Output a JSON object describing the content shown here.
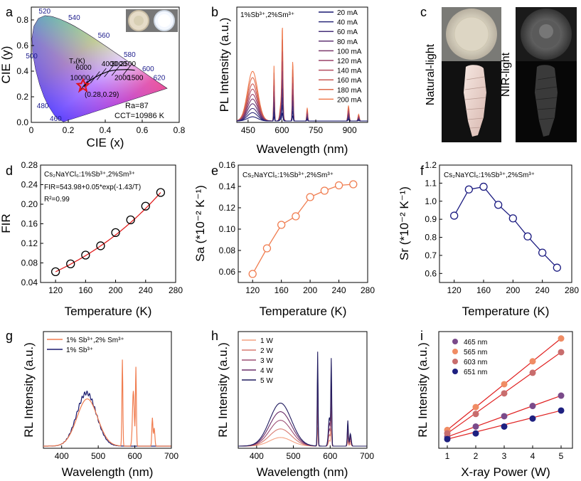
{
  "chart_data": [
    {
      "panel": "a",
      "type": "scatter",
      "xlabel": "CIE (x)",
      "ylabel": "CIE (y)",
      "xlim": [
        0.0,
        0.8
      ],
      "ylim": [
        0.0,
        0.9
      ],
      "xticks": [
        0.0,
        0.2,
        0.4,
        0.6,
        0.8
      ],
      "yticks": [
        0.0,
        0.2,
        0.4,
        0.6,
        0.8
      ],
      "wavelength_labels": [
        "520",
        "540",
        "560",
        "580",
        "600",
        "620",
        "500",
        "480",
        "460"
      ],
      "planck_label": "Tₓ(K)",
      "cct_labels": [
        "10000",
        "6000",
        "4000",
        "3000",
        "2500",
        "2000",
        "1500"
      ],
      "point": {
        "x": 0.28,
        "y": 0.29,
        "label": "(0.28,0.29)"
      },
      "ra_text": "Ra=87",
      "cct_text": "CCT=10986 K"
    },
    {
      "panel": "b",
      "type": "line",
      "title": "1%Sb³⁺,2%Sm³⁺",
      "xlabel": "Wavelength (nm)",
      "ylabel": "PL Intensity (a.u.)",
      "xlim": [
        400,
        980
      ],
      "xticks": [
        450,
        600,
        750,
        900
      ],
      "series": [
        {
          "name": "20 mA",
          "scale": 0.08,
          "color": "#191970"
        },
        {
          "name": "40 mA",
          "scale": 0.16,
          "color": "#2c2a7a"
        },
        {
          "name": "60 mA",
          "scale": 0.24,
          "color": "#473079"
        },
        {
          "name": "80 mA",
          "scale": 0.33,
          "color": "#613574"
        },
        {
          "name": "100 mA",
          "scale": 0.42,
          "color": "#7d3a6e"
        },
        {
          "name": "120 mA",
          "scale": 0.51,
          "color": "#9a4268"
        },
        {
          "name": "140 mA",
          "scale": 0.61,
          "color": "#b44d60"
        },
        {
          "name": "160 mA",
          "scale": 0.71,
          "color": "#cb5a55"
        },
        {
          "name": "180 mA",
          "scale": 0.83,
          "color": "#de6a4b"
        },
        {
          "name": "200 mA",
          "scale": 0.95,
          "color": "#f07d50"
        }
      ]
    },
    {
      "panel": "d",
      "type": "scatter",
      "xlabel": "Temperature (K)",
      "ylabel": "FIR",
      "xlim": [
        100,
        280
      ],
      "ylim": [
        0.04,
        0.28
      ],
      "xticks": [
        120,
        160,
        200,
        240,
        280
      ],
      "yticks": [
        0.04,
        0.08,
        0.12,
        0.16,
        0.2,
        0.24,
        0.28
      ],
      "x": [
        120,
        140,
        160,
        180,
        200,
        220,
        240,
        260
      ],
      "y": [
        0.062,
        0.078,
        0.096,
        0.115,
        0.142,
        0.168,
        0.196,
        0.224
      ],
      "annotations": [
        "Cs₂NaYCl₆:1%Sb³⁺,2%Sm³⁺",
        "FIR=543.98+0.05*exp(-1.43/T)",
        "R²=0.99"
      ]
    },
    {
      "panel": "e",
      "type": "line",
      "xlabel": "Temperature (K)",
      "ylabel": "Sa (*10⁻² K⁻¹)",
      "xlim": [
        100,
        280
      ],
      "ylim": [
        0.05,
        0.16
      ],
      "xticks": [
        120,
        160,
        200,
        240,
        280
      ],
      "yticks": [
        0.06,
        0.08,
        0.1,
        0.12,
        0.14,
        0.16
      ],
      "x": [
        120,
        140,
        160,
        180,
        200,
        220,
        240,
        260
      ],
      "y": [
        0.058,
        0.082,
        0.104,
        0.112,
        0.13,
        0.136,
        0.141,
        0.142
      ],
      "annotation": "Cs₂NaYCl₆:1%Sb³⁺,2%Sm³⁺"
    },
    {
      "panel": "f",
      "type": "line",
      "xlabel": "Temperature (K)",
      "ylabel": "Sr (*10⁻² K⁻¹)",
      "xlim": [
        100,
        280
      ],
      "ylim": [
        0.55,
        1.2
      ],
      "xticks": [
        120,
        160,
        200,
        240,
        280
      ],
      "yticks": [
        0.6,
        0.7,
        0.8,
        0.9,
        1.0,
        1.1,
        1.2
      ],
      "x": [
        120,
        140,
        160,
        180,
        200,
        220,
        240,
        260
      ],
      "y": [
        0.92,
        1.065,
        1.08,
        0.98,
        0.905,
        0.805,
        0.715,
        0.632
      ],
      "annotation": "Cs₂NaYCl₆:1%Sb³⁺,2%Sm³⁺"
    },
    {
      "panel": "g",
      "type": "line",
      "xlabel": "Wavelength (nm)",
      "ylabel": "RL Intensity (a.u.)",
      "xlim": [
        350,
        700
      ],
      "xticks": [
        400,
        500,
        600,
        700
      ],
      "series": [
        {
          "name": "1% Sb³⁺,2% Sm³⁺",
          "color": "#f07d50"
        },
        {
          "name": "1% Sb³⁺",
          "color": "#1a1a6e"
        }
      ]
    },
    {
      "panel": "h",
      "type": "line",
      "xlabel": "Wavelength (nm)",
      "ylabel": "RL Intensity (a.u.)",
      "xlim": [
        350,
        700
      ],
      "xticks": [
        400,
        500,
        600,
        700
      ],
      "series": [
        {
          "name": "1 W",
          "scale": 0.2,
          "color": "#f4a080"
        },
        {
          "name": "2 W",
          "scale": 0.4,
          "color": "#d77a70"
        },
        {
          "name": "3 W",
          "scale": 0.6,
          "color": "#9c4e74"
        },
        {
          "name": "4 W",
          "scale": 0.8,
          "color": "#6a2f6a"
        },
        {
          "name": "5 W",
          "scale": 1.0,
          "color": "#1f1a5e"
        }
      ]
    },
    {
      "panel": "i",
      "type": "scatter",
      "xlabel": "X-ray Power (W)",
      "ylabel": "RL Intensity (a.u.)",
      "xlim": [
        0.7,
        5.4
      ],
      "xticks": [
        1,
        2,
        3,
        4,
        5
      ],
      "x": [
        1,
        2,
        3,
        4,
        5
      ],
      "series": [
        {
          "name": "465 nm",
          "color": "#7a4a8a",
          "values": [
            0.2,
            0.29,
            0.38,
            0.47,
            0.56
          ]
        },
        {
          "name": "565 nm",
          "color": "#f08c64",
          "values": [
            0.26,
            0.46,
            0.66,
            0.86,
            1.06
          ]
        },
        {
          "name": "603 nm",
          "color": "#c86d6d",
          "values": [
            0.23,
            0.4,
            0.58,
            0.76,
            0.94
          ]
        },
        {
          "name": "651 nm",
          "color": "#1e2080",
          "values": [
            0.18,
            0.23,
            0.29,
            0.36,
            0.43
          ]
        }
      ]
    }
  ],
  "panel_c": {
    "natural_label": "Natural-light",
    "nir_label": "NIR-light"
  },
  "panel_letters": [
    "a",
    "b",
    "c",
    "d",
    "e",
    "f",
    "g",
    "h",
    "i"
  ]
}
